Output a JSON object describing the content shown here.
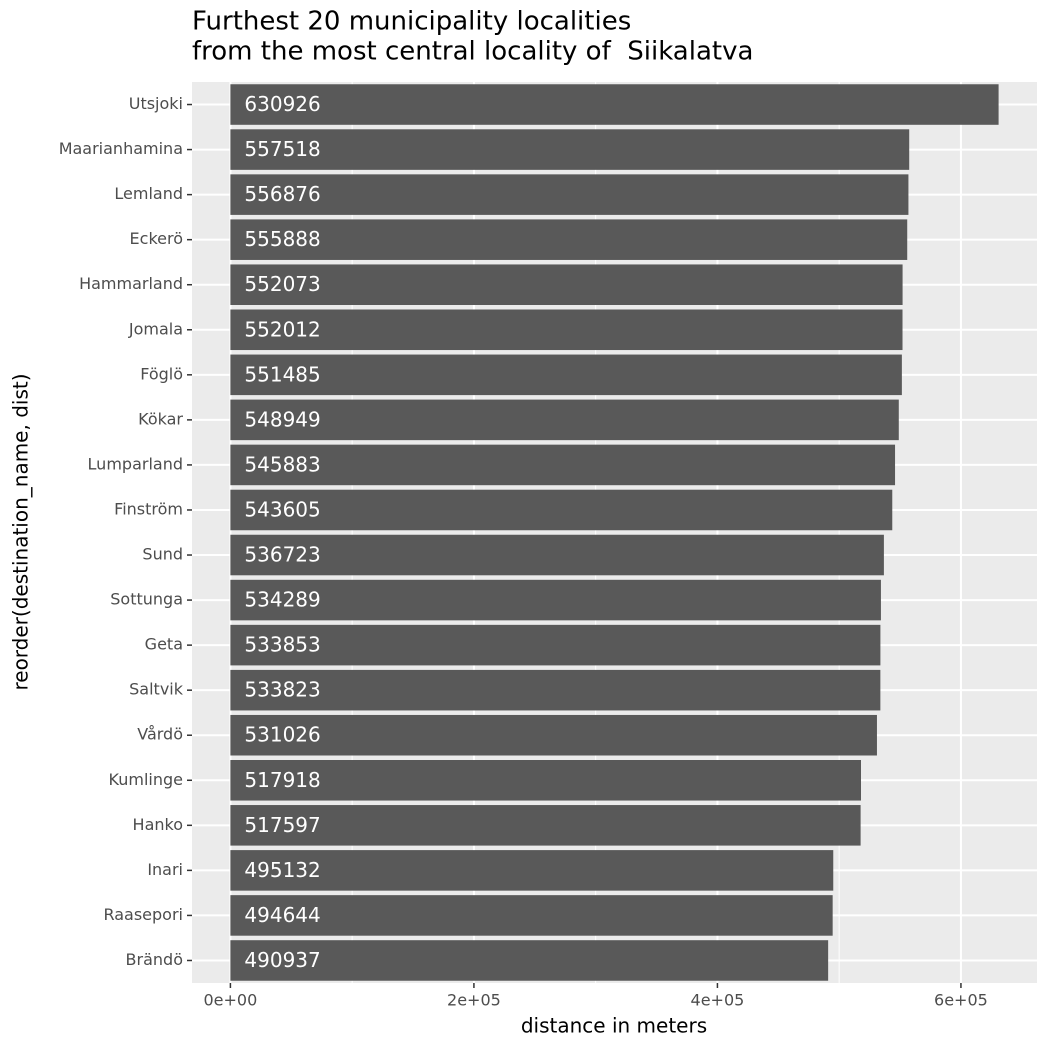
{
  "chart_data": {
    "type": "barh",
    "title": [
      "Furthest 20 municipality localities",
      "from the most central locality of  Siikalatva"
    ],
    "x_label": "distance in meters",
    "y_label": "reorder(destination_name, dist)",
    "categories": [
      "Utsjoki",
      "Maarianhamina",
      "Lemland",
      "Eckerö",
      "Hammarland",
      "Jomala",
      "Föglö",
      "Kökar",
      "Lumparland",
      "Finström",
      "Sund",
      "Sottunga",
      "Geta",
      "Saltvik",
      "Vårdö",
      "Kumlinge",
      "Hanko",
      "Inari",
      "Raasepori",
      "Brändö"
    ],
    "values": [
      630926,
      557518,
      556876,
      555888,
      552073,
      552012,
      551485,
      548949,
      545883,
      543605,
      536723,
      534289,
      533853,
      533823,
      531026,
      517918,
      517597,
      495132,
      494644,
      490937
    ],
    "color": "#595959",
    "label_color": "#ffffff",
    "xlim": [
      -31546,
      662472
    ],
    "xticks": [
      {
        "value": 0,
        "label": "0e+00"
      },
      {
        "value": 200000,
        "label": "2e+05"
      },
      {
        "value": 400000,
        "label": "4e+05"
      },
      {
        "value": 600000,
        "label": "6e+05"
      }
    ],
    "x_minor_ticks": [
      100000,
      300000,
      500000
    ],
    "grid": true
  }
}
